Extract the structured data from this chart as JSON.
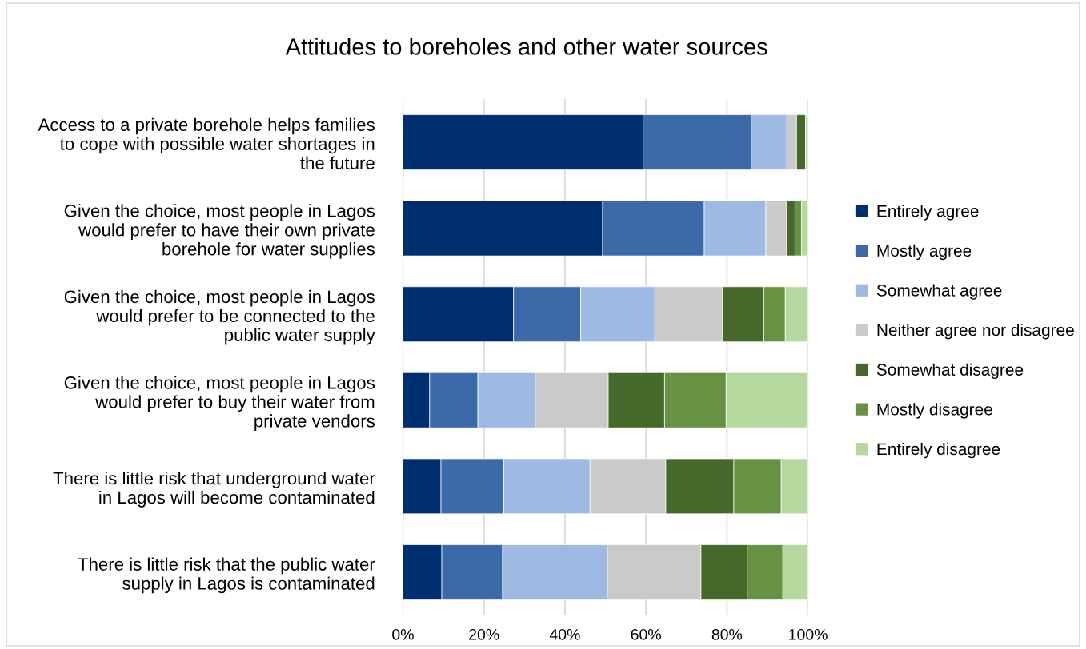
{
  "chart_data": {
    "type": "bar",
    "orientation": "horizontal",
    "stacked": true,
    "title": "Attitudes to boreholes and other water sources",
    "categories": [
      "Access to a private borehole helps families\nto cope with possible water shortages in\nthe future",
      "Given the choice, most people in Lagos\nwould prefer to have their own private\nborehole for water supplies",
      "Given the choice, most people in Lagos\nwould prefer to be connected to the\npublic water supply",
      "Given the choice, most people in Lagos\nwould prefer to buy their water from\nprivate vendors",
      "There is little risk that underground water\nin Lagos will become contaminated",
      "There is little risk that the public water\nsupply in Lagos is contaminated"
    ],
    "series": [
      {
        "name": "Entirely agree",
        "color": "#002f6f",
        "values": [
          59.3,
          49.3,
          27.3,
          6.6,
          9.4,
          9.6
        ]
      },
      {
        "name": "Mostly agree",
        "color": "#3c69a7",
        "values": [
          26.7,
          25.1,
          16.6,
          11.9,
          15.5,
          15.0
        ]
      },
      {
        "name": "Somewhat agree",
        "color": "#9fbae2",
        "values": [
          8.8,
          15.2,
          18.3,
          14.2,
          21.3,
          25.9
        ]
      },
      {
        "name": "Neither agree nor disagree",
        "color": "#cacaca",
        "values": [
          2.4,
          5.1,
          16.7,
          18.0,
          18.7,
          23.1
        ]
      },
      {
        "name": "Somewhat disagree",
        "color": "#46682b",
        "values": [
          2.2,
          2.1,
          10.2,
          13.9,
          16.8,
          11.4
        ]
      },
      {
        "name": "Mostly disagree",
        "color": "#679244",
        "values": [
          null,
          1.6,
          5.3,
          15.2,
          11.7,
          8.8
        ]
      },
      {
        "name": "Entirely disagree",
        "color": "#b6d79e",
        "values": [
          0.6,
          1.6,
          5.6,
          20.2,
          6.6,
          6.2
        ]
      }
    ],
    "xlim": [
      0,
      100
    ],
    "xticks": [
      {
        "value": 0,
        "label": "0%"
      },
      {
        "value": 20,
        "label": "20%"
      },
      {
        "value": 40,
        "label": "40%"
      },
      {
        "value": 60,
        "label": "60%"
      },
      {
        "value": 80,
        "label": "80%"
      },
      {
        "value": 100,
        "label": "100%"
      }
    ],
    "grid": "x",
    "legend": "right"
  }
}
